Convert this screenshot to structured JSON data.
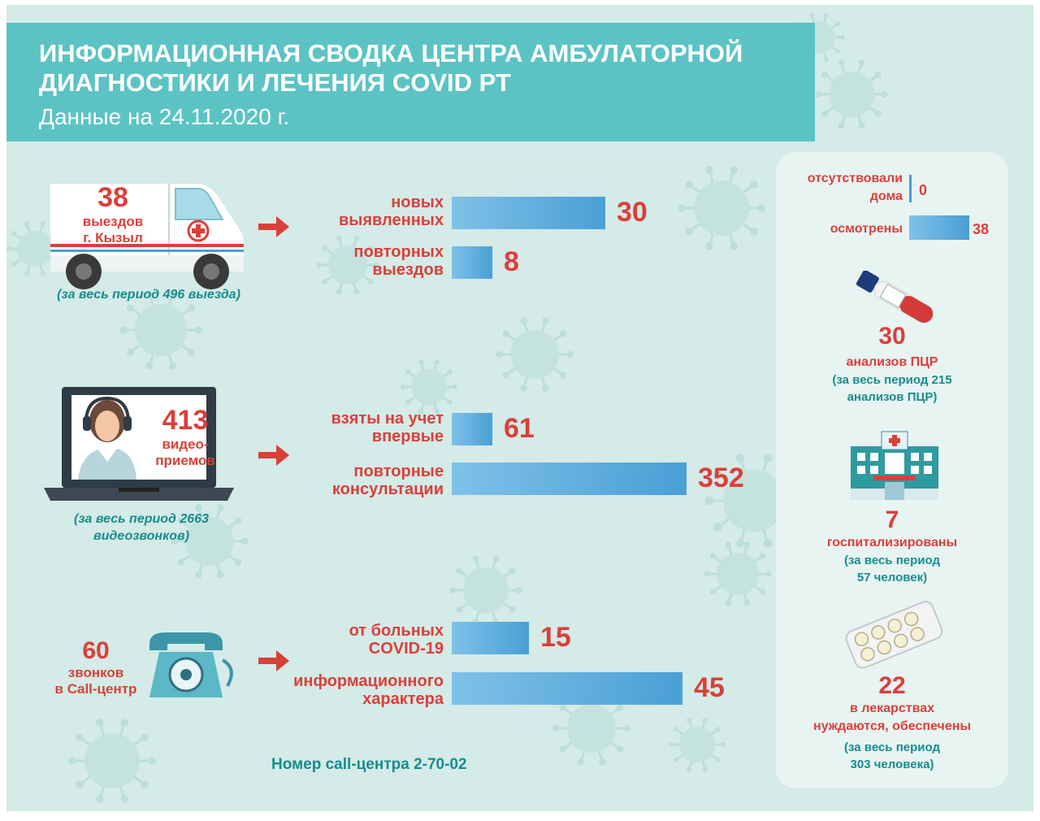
{
  "header": {
    "title_line1": "ИНФОРМАЦИОННАЯ СВОДКА ЦЕНТРА АМБУЛАТОРНОЙ",
    "title_line2": "ДИАГНОСТИКИ И ЛЕЧЕНИЯ COVID РТ",
    "subtitle": "Данные на 24.11.2020 г."
  },
  "ambulance": {
    "number": "38",
    "label_line1": "выездов",
    "label_line2": "г. Кызыл",
    "note": "(за весь период 496 выезда)"
  },
  "ambulance_bars": [
    {
      "label_line1": "новых",
      "label_line2": "выявленных",
      "value": 30
    },
    {
      "label_line1": "повторных",
      "label_line2": "выездов",
      "value": 8
    }
  ],
  "video": {
    "number": "413",
    "label_line1": "видео-",
    "label_line2": "приемов",
    "note_line1": "(за весь период 2663",
    "note_line2": "видеозвонков)"
  },
  "video_bars": [
    {
      "label_line1": "взяты на учет",
      "label_line2": "впервые",
      "value": 61
    },
    {
      "label_line1": "повторные",
      "label_line2": "консультации",
      "value": 352
    }
  ],
  "call": {
    "number": "60",
    "label_line1": "звонков",
    "label_line2": "в Call-центр",
    "footer": "Номер call-центра 2-70-02"
  },
  "call_bars": [
    {
      "label_line1": "от больных",
      "label_line2": "COVID-19",
      "value": 15
    },
    {
      "label_line1": "информационного",
      "label_line2": "характера",
      "value": 45
    }
  ],
  "side": {
    "absent_line1": "отсутствовали",
    "absent_line2": "дома",
    "absent_value": 0,
    "examined_label": "осмотрены",
    "examined_value": 38,
    "pcr_number": "30",
    "pcr_label": "анализов ПЦР",
    "pcr_note_line1": "(за весь период 215",
    "pcr_note_line2": "анализов ПЦР)",
    "hosp_number": "7",
    "hosp_label": "госпитализированы",
    "hosp_note_line1": "(за весь период",
    "hosp_note_line2": "57 человек)",
    "med_number": "22",
    "med_label_line1": "в лекарствах",
    "med_label_line2": "нуждаются, обеспечены",
    "med_note_line1": "(за весь период",
    "med_note_line2": "303 человека)"
  },
  "colors": {
    "header": "#5cc3c4",
    "background": "#d4ebe7",
    "accent_red": "#db3f3a",
    "teal_text": "#178c8f",
    "bar_light": "#7fc1e8",
    "bar_dark": "#4a9fd6"
  },
  "icons": [
    "ambulance-icon",
    "laptop-operator-icon",
    "telephone-icon",
    "test-tube-icon",
    "hospital-icon",
    "pills-icon",
    "arrow-right-icon",
    "virus-icon"
  ]
}
